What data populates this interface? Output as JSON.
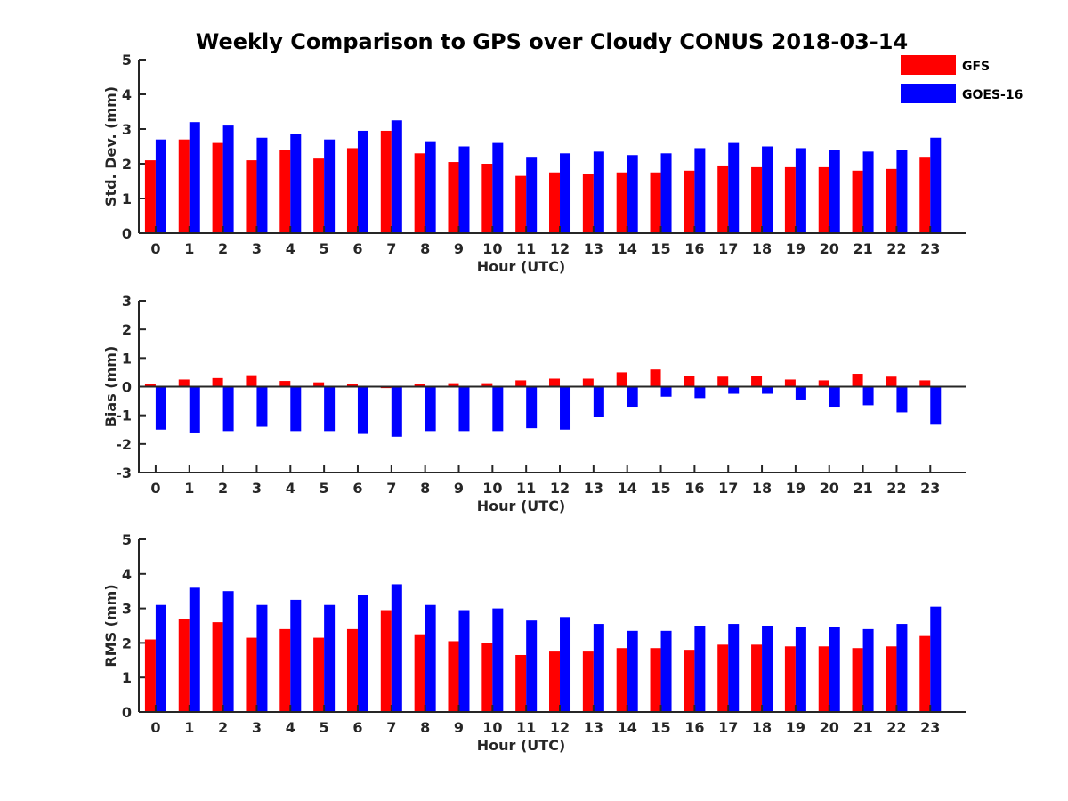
{
  "colors": {
    "GFS": "#ff0000",
    "GOES-16": "#0000ff"
  },
  "chart_data": {
    "title": "Weekly Comparison to GPS over Cloudy CONUS 2018-03-14",
    "type": "bar",
    "legend": {
      "placement": "top-right",
      "entries": [
        "GFS",
        "GOES-16"
      ]
    },
    "panels": [
      {
        "type": "bar",
        "ylabel": "Std. Dev. (mm)",
        "xlabel": "Hour (UTC)",
        "ylim": [
          0,
          5
        ],
        "yticks": [
          0,
          1,
          2,
          3,
          4,
          5
        ],
        "categories": [
          "0",
          "1",
          "2",
          "3",
          "4",
          "5",
          "6",
          "7",
          "8",
          "9",
          "10",
          "11",
          "12",
          "13",
          "14",
          "15",
          "16",
          "17",
          "18",
          "19",
          "20",
          "21",
          "22",
          "23"
        ],
        "series": [
          {
            "name": "GFS",
            "values": [
              2.1,
              2.7,
              2.6,
              2.1,
              2.4,
              2.15,
              2.45,
              2.95,
              2.3,
              2.05,
              2.0,
              1.65,
              1.75,
              1.7,
              1.75,
              1.75,
              1.8,
              1.95,
              1.9,
              1.9,
              1.9,
              1.8,
              1.85,
              2.2
            ]
          },
          {
            "name": "GOES-16",
            "values": [
              2.7,
              3.2,
              3.1,
              2.75,
              2.85,
              2.7,
              2.95,
              3.25,
              2.65,
              2.5,
              2.6,
              2.2,
              2.3,
              2.35,
              2.25,
              2.3,
              2.45,
              2.6,
              2.5,
              2.45,
              2.4,
              2.35,
              2.4,
              2.75
            ]
          }
        ]
      },
      {
        "type": "bar",
        "ylabel": "Bias (mm)",
        "xlabel": "Hour (UTC)",
        "ylim": [
          -3,
          3
        ],
        "yticks": [
          -3,
          -2,
          -1,
          0,
          1,
          2,
          3
        ],
        "categories": [
          "0",
          "1",
          "2",
          "3",
          "4",
          "5",
          "6",
          "7",
          "8",
          "9",
          "10",
          "11",
          "12",
          "13",
          "14",
          "15",
          "16",
          "17",
          "18",
          "19",
          "20",
          "21",
          "22",
          "23"
        ],
        "series": [
          {
            "name": "GFS",
            "values": [
              0.1,
              0.25,
              0.3,
              0.4,
              0.2,
              0.15,
              0.1,
              -0.05,
              0.1,
              0.12,
              0.12,
              0.22,
              0.28,
              0.28,
              0.5,
              0.6,
              0.38,
              0.35,
              0.38,
              0.25,
              0.22,
              0.45,
              0.35,
              0.22
            ]
          },
          {
            "name": "GOES-16",
            "values": [
              -1.5,
              -1.6,
              -1.55,
              -1.4,
              -1.55,
              -1.55,
              -1.65,
              -1.75,
              -1.55,
              -1.55,
              -1.55,
              -1.45,
              -1.5,
              -1.05,
              -0.7,
              -0.35,
              -0.4,
              -0.25,
              -0.25,
              -0.45,
              -0.7,
              -0.65,
              -0.9,
              -1.3
            ]
          }
        ]
      },
      {
        "type": "bar",
        "ylabel": "RMS (mm)",
        "xlabel": "Hour (UTC)",
        "ylim": [
          0,
          5
        ],
        "yticks": [
          0,
          1,
          2,
          3,
          4,
          5
        ],
        "categories": [
          "0",
          "1",
          "2",
          "3",
          "4",
          "5",
          "6",
          "7",
          "8",
          "9",
          "10",
          "11",
          "12",
          "13",
          "14",
          "15",
          "16",
          "17",
          "18",
          "19",
          "20",
          "21",
          "22",
          "23"
        ],
        "series": [
          {
            "name": "GFS",
            "values": [
              2.1,
              2.7,
              2.6,
              2.15,
              2.4,
              2.15,
              2.4,
              2.95,
              2.25,
              2.05,
              2.0,
              1.65,
              1.75,
              1.75,
              1.85,
              1.85,
              1.8,
              1.95,
              1.95,
              1.9,
              1.9,
              1.85,
              1.9,
              2.2
            ]
          },
          {
            "name": "GOES-16",
            "values": [
              3.1,
              3.6,
              3.5,
              3.1,
              3.25,
              3.1,
              3.4,
              3.7,
              3.1,
              2.95,
              3.0,
              2.65,
              2.75,
              2.55,
              2.35,
              2.35,
              2.5,
              2.55,
              2.5,
              2.45,
              2.45,
              2.4,
              2.55,
              3.05
            ]
          }
        ]
      }
    ]
  }
}
